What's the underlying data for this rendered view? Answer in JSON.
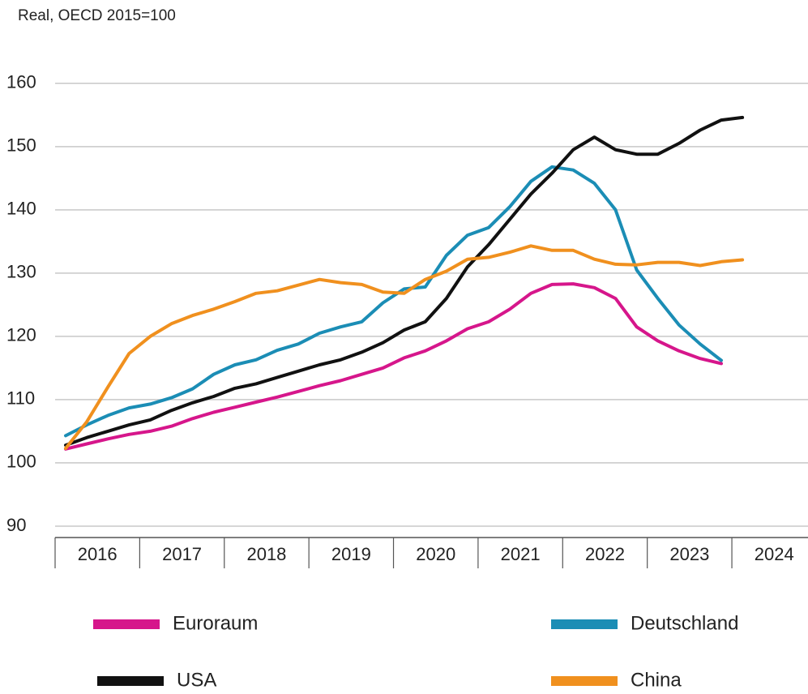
{
  "chart_data": {
    "type": "line",
    "subtitle": "Real, OECD 2015=100",
    "x": [
      2016.125,
      2016.375,
      2016.625,
      2016.875,
      2017.125,
      2017.375,
      2017.625,
      2017.875,
      2018.125,
      2018.375,
      2018.625,
      2018.875,
      2019.125,
      2019.375,
      2019.625,
      2019.875,
      2020.125,
      2020.375,
      2020.625,
      2020.875,
      2021.125,
      2021.375,
      2021.625,
      2021.875,
      2022.125,
      2022.375,
      2022.625,
      2022.875,
      2023.125,
      2023.375,
      2023.625,
      2023.875,
      2024.125
    ],
    "series": [
      {
        "name": "Euroraum",
        "color": "#d6168b",
        "values": [
          102.2,
          103,
          103.8,
          104.5,
          105,
          105.8,
          107,
          108,
          108.8,
          109.6,
          110.4,
          111.3,
          112.2,
          113,
          114,
          115,
          116.6,
          117.7,
          119.3,
          121.2,
          122.3,
          124.3,
          126.8,
          128.2,
          128.3,
          127.7,
          126,
          121.5,
          119.3,
          117.7,
          116.5,
          115.7,
          null
        ]
      },
      {
        "name": "Deutschland",
        "color": "#1b8db5",
        "values": [
          104.3,
          106,
          107.5,
          108.7,
          109.3,
          110.3,
          111.7,
          114,
          115.5,
          116.3,
          117.8,
          118.8,
          120.5,
          121.5,
          122.3,
          125.3,
          127.5,
          127.8,
          132.8,
          136,
          137.2,
          140.5,
          144.5,
          146.8,
          146.3,
          144.2,
          140,
          130.5,
          126,
          121.8,
          118.8,
          116.2,
          null
        ]
      },
      {
        "name": "USA",
        "color": "#111111",
        "values": [
          102.8,
          104,
          105,
          106,
          106.8,
          108.3,
          109.5,
          110.5,
          111.8,
          112.5,
          113.5,
          114.5,
          115.5,
          116.3,
          117.5,
          119,
          121,
          122.3,
          126,
          131,
          134.5,
          138.5,
          142.5,
          145.8,
          149.5,
          151.5,
          149.5,
          148.8,
          148.8,
          150.5,
          152.6,
          154.2,
          154.6
        ]
      },
      {
        "name": "China",
        "color": "#f0901e",
        "values": [
          102.3,
          106.5,
          112,
          117.3,
          120,
          122,
          123.3,
          124.3,
          125.5,
          126.8,
          127.2,
          128.1,
          129,
          128.5,
          128.2,
          127,
          126.8,
          129,
          130.3,
          132.2,
          132.5,
          133.3,
          134.3,
          133.6,
          133.6,
          132.2,
          131.4,
          131.3,
          131.7,
          131.7,
          131.2,
          131.8,
          132.1
        ]
      }
    ],
    "xlim": [
      2016,
      2024.9
    ],
    "xticks": [
      {
        "value": 2016.5,
        "label": "2016"
      },
      {
        "value": 2017.5,
        "label": "2017"
      },
      {
        "value": 2018.5,
        "label": "2018"
      },
      {
        "value": 2019.5,
        "label": "2019"
      },
      {
        "value": 2020.5,
        "label": "2020"
      },
      {
        "value": 2021.5,
        "label": "2021"
      },
      {
        "value": 2022.5,
        "label": "2022"
      },
      {
        "value": 2023.5,
        "label": "2023"
      },
      {
        "value": 2024.5,
        "label": "2024"
      }
    ],
    "ylim": [
      88.2,
      161
    ],
    "yticks": [
      90,
      100,
      110,
      120,
      130,
      140,
      150,
      160
    ],
    "grid": true
  }
}
